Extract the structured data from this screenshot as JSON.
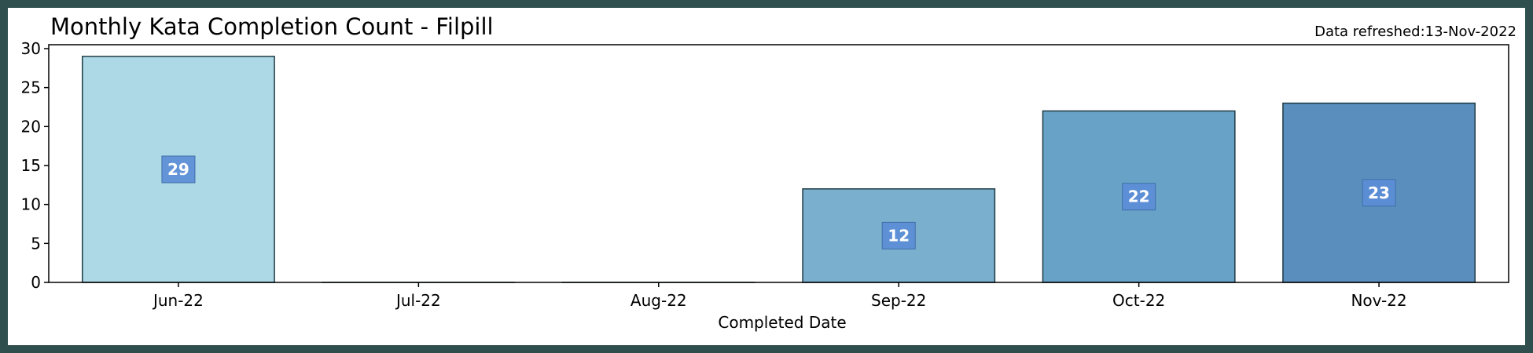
{
  "chart_data": {
    "type": "bar",
    "title": "Monthly Kata Completion Count - Filpill",
    "refreshed_text": "Data refreshed:13-Nov-2022",
    "xlabel": "Completed Date",
    "ylabel": "",
    "categories": [
      "Jun-22",
      "Jul-22",
      "Aug-22",
      "Sep-22",
      "Oct-22",
      "Nov-22"
    ],
    "values": [
      29,
      0,
      0,
      12,
      22,
      23
    ],
    "data_labels": [
      "29",
      "",
      "",
      "12",
      "22",
      "23"
    ],
    "ylim": [
      0,
      30.5
    ],
    "yticks": [
      0,
      5,
      10,
      15,
      20,
      25,
      30
    ],
    "bar_colors": [
      "#add8e6",
      "#9cc8dc",
      "#8bbad5",
      "#7aafcd",
      "#68a2c7",
      "#5a8fbd"
    ],
    "bar_edge_color": "#1f3b44",
    "label_box_color": "#5b8dd6",
    "grid": false,
    "legend": "none"
  }
}
